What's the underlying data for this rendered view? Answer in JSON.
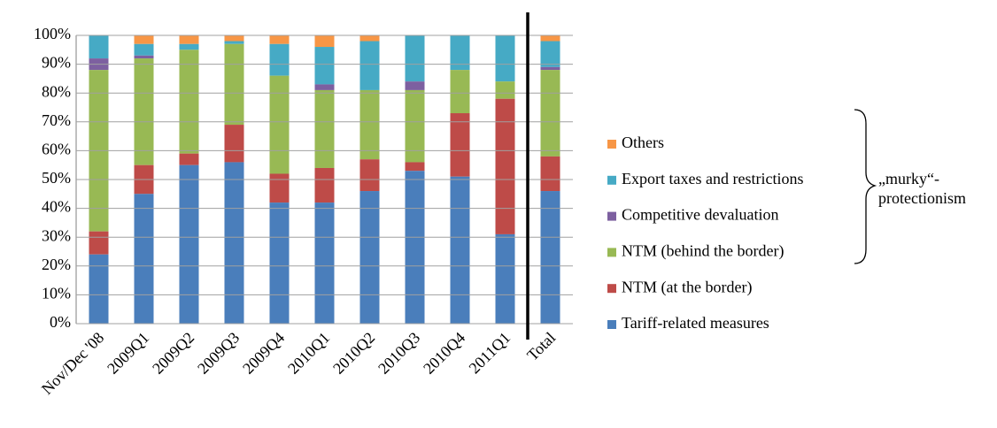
{
  "chart_data": {
    "type": "stacked_bar",
    "categories": [
      "Nov/Dec '08",
      "2009Q1",
      "2009Q2",
      "2009Q3",
      "2009Q4",
      "2010Q1",
      "2010Q2",
      "2010Q3",
      "2010Q4",
      "2011Q1",
      "Total"
    ],
    "series": [
      {
        "name": "Tariff-related measures",
        "color": "#4a7ebb",
        "values": [
          24,
          45,
          55,
          56,
          42,
          42,
          46,
          53,
          51,
          31,
          46
        ]
      },
      {
        "name": "NTM (at the border)",
        "color": "#be4b48",
        "values": [
          8,
          10,
          4,
          13,
          10,
          12,
          11,
          3,
          22,
          47,
          12
        ]
      },
      {
        "name": "NTM (behind the border)",
        "color": "#98b954",
        "values": [
          56,
          37,
          36,
          28,
          34,
          27,
          24,
          25,
          15,
          6,
          30
        ]
      },
      {
        "name": "Competitive devaluation",
        "color": "#7d60a0",
        "values": [
          4,
          1,
          0,
          0,
          0,
          2,
          0,
          3,
          0,
          0,
          1
        ]
      },
      {
        "name": "Export taxes and restrictions",
        "color": "#46aac5",
        "values": [
          8,
          4,
          2,
          1,
          11,
          13,
          17,
          16,
          12,
          16,
          9
        ]
      },
      {
        "name": "Others",
        "color": "#f79646",
        "values": [
          0,
          3,
          3,
          2,
          3,
          4,
          2,
          0,
          0,
          0,
          2
        ]
      }
    ],
    "ylim": [
      0,
      100
    ],
    "yticks": [
      {
        "value": 0,
        "label": "0%"
      },
      {
        "value": 10,
        "label": "10%"
      },
      {
        "value": 20,
        "label": "20%"
      },
      {
        "value": 30,
        "label": "30%"
      },
      {
        "value": 40,
        "label": "40%"
      },
      {
        "value": 50,
        "label": "50%"
      },
      {
        "value": 60,
        "label": "60%"
      },
      {
        "value": 70,
        "label": "70%"
      },
      {
        "value": 80,
        "label": "80%"
      },
      {
        "value": 90,
        "label": "90%"
      },
      {
        "value": 100,
        "label": "100%"
      }
    ],
    "grid": true,
    "annotation": [
      "„murky“-",
      "protectionism"
    ]
  }
}
